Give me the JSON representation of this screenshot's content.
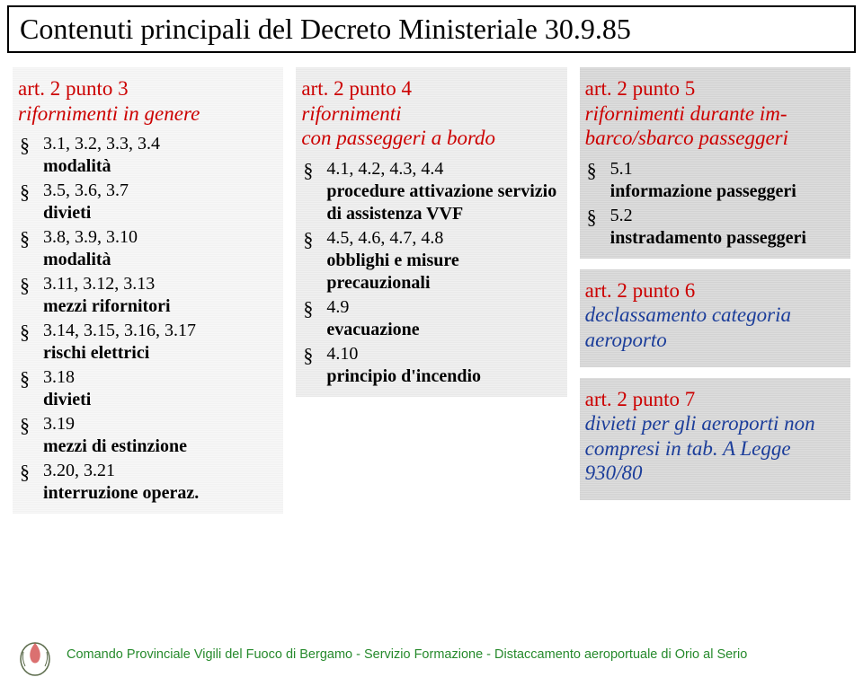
{
  "title": "Contenuti principali del Decreto Ministeriale 30.9.85",
  "colors": {
    "red": "#cc0000",
    "blue": "#1b3d9a",
    "green": "#268a2c",
    "black": "#000000"
  },
  "col1": {
    "box1": {
      "bg": "lightgray",
      "title_line1": "art. 2 punto 3",
      "title_line2": "rifornimenti in genere",
      "heading_color": "red",
      "items": [
        {
          "ref": "3.1, 3.2, 3.3, 3.4",
          "desc": "modalità"
        },
        {
          "ref": "3.5, 3.6, 3.7",
          "desc": "divieti"
        },
        {
          "ref": "3.8, 3.9, 3.10",
          "desc": "modalità"
        },
        {
          "ref": "3.11, 3.12, 3.13",
          "desc": "mezzi rifornitori"
        },
        {
          "ref": "3.14, 3.15, 3.16, 3.17",
          "desc": "rischi elettrici"
        },
        {
          "ref": "3.18",
          "desc": "divieti"
        },
        {
          "ref": "3.19",
          "desc": "mezzi di estinzione"
        },
        {
          "ref": "3.20, 3.21",
          "desc": "interruzione operaz."
        }
      ]
    }
  },
  "col2": {
    "box1": {
      "bg": "medgray",
      "title_line1": "art. 2 punto 4",
      "title_line2": "rifornimenti",
      "title_line3": "con passeggeri a bordo",
      "heading_color": "red",
      "items": [
        {
          "ref": "4.1, 4.2, 4.3, 4.4",
          "desc": "procedure attivazione servizio di assistenza VVF"
        },
        {
          "ref": "4.5, 4.6, 4.7, 4.8",
          "desc": "obblighi e misure precauzionali"
        },
        {
          "ref": "4.9",
          "desc": "evacuazione"
        },
        {
          "ref": "4.10",
          "desc": "principio d'incendio"
        }
      ]
    }
  },
  "col3": {
    "box1": {
      "bg": "darkgray",
      "title_line1": "art. 2 punto 5",
      "title_line2": "rifornimenti durante im-",
      "title_line3": "barco/sbarco passeggeri",
      "heading_color": "red",
      "items": [
        {
          "ref": "5.1",
          "desc": "informazione passeggeri"
        },
        {
          "ref": "5.2",
          "desc": "instradamento passeggeri"
        }
      ]
    },
    "box2": {
      "bg": "darkgray",
      "title_line1": "art. 2 punto 6",
      "title_line2": "declassamento categoria aeroporto",
      "line1_color": "red",
      "line2_color": "blue"
    },
    "box3": {
      "bg": "darkgray",
      "title_line1": "art. 2 punto 7",
      "title_line2": "divieti per gli aeroporti non compresi in tab. A Legge 930/80",
      "line1_color": "red",
      "line2_color": "blue"
    }
  },
  "footer": "Comando Provinciale Vigili del Fuoco di Bergamo - Servizio Formazione - Distaccamento aeroportuale di Orio al Serio"
}
